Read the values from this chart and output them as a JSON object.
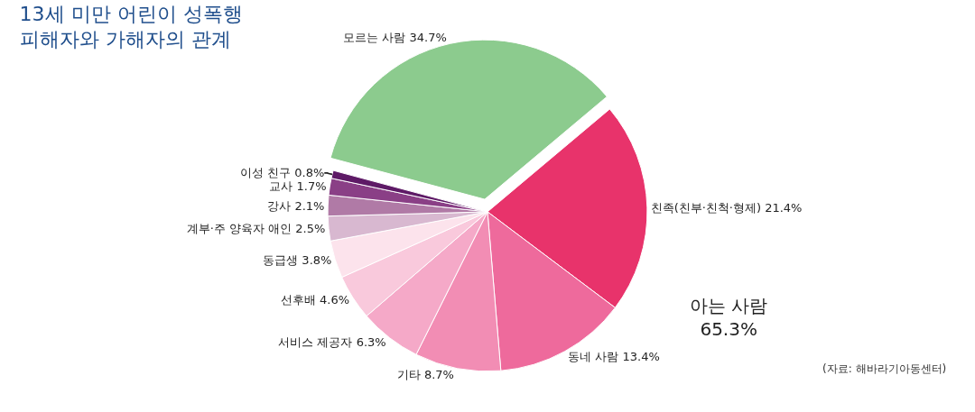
{
  "chart_data": {
    "type": "pie",
    "title": "13세 미만 어린이 성폭행\n피해자와 가해자의 관계",
    "categories": [
      "모르는 사람",
      "친족(친부·친척·형제)",
      "동네 사람",
      "기타",
      "서비스 제공자",
      "선후배",
      "동급생",
      "계부·주 양육자 애인",
      "강사",
      "교사",
      "이성 친구"
    ],
    "values": [
      34.7,
      21.4,
      13.4,
      8.7,
      6.3,
      4.6,
      3.8,
      2.5,
      2.1,
      1.7,
      0.8
    ],
    "value_labels": [
      "34.7%",
      "21.4%",
      "13.4%",
      "8.7%",
      "6.3%",
      "4.6%",
      "3.8%",
      "2.5%",
      "2.1%",
      "1.7%",
      "0.8%"
    ],
    "colors": [
      "#8ccb8e",
      "#e8336b",
      "#ee6a9c",
      "#f28db4",
      "#f5a9c8",
      "#f9c9dc",
      "#fce3ec",
      "#d8b8d0",
      "#b07aa6",
      "#8a3f86",
      "#5e1a66"
    ],
    "annotations": [
      "아는 사람\n65.3%",
      "(자료: 해바라기아동센터)"
    ],
    "legend": false
  }
}
